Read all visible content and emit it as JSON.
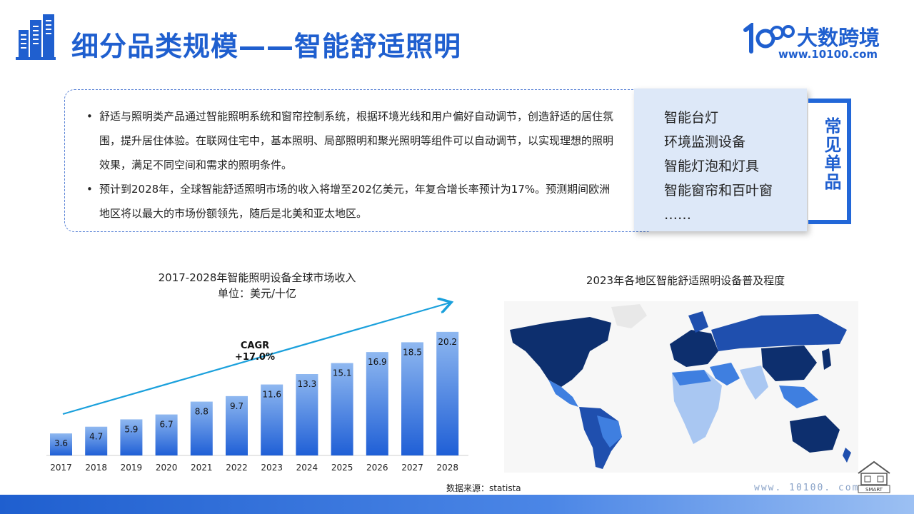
{
  "header": {
    "title": "细分品类规模——智能舒适照明",
    "brand_name": "大数跨境",
    "brand_url": "www.10100.com"
  },
  "description": {
    "bullets": [
      "舒适与照明类产品通过智能照明系统和窗帘控制系统，根据环境光线和用户偏好自动调节，创造舒适的居住氛围，提升居住体验。在联网住宅中，基本照明、局部照明和聚光照明等组件可以自动调节，以实现理想的照明效果，满足不同空间和需求的照明条件。",
      "预计到2028年，全球智能舒适照明市场的收入将增至202亿美元，年复合增长率预计为17%。预测期间欧洲地区将以最大的市场份额领先，随后是北美和亚太地区。"
    ]
  },
  "common_items": {
    "tag": "常见单品",
    "items": [
      "智能台灯",
      "环境监测设备",
      "智能灯泡和灯具",
      "智能窗帘和百叶窗",
      "……"
    ]
  },
  "chart_data": {
    "type": "bar",
    "title": "2017-2028年智能照明设备全球市场收入",
    "subtitle": "单位：美元/十亿",
    "categories": [
      "2017",
      "2018",
      "2019",
      "2020",
      "2021",
      "2022",
      "2023",
      "2024",
      "2025",
      "2026",
      "2027",
      "2028"
    ],
    "values": [
      3.6,
      4.7,
      5.9,
      6.7,
      8.8,
      9.7,
      11.6,
      13.3,
      15.1,
      16.9,
      18.5,
      20.2
    ],
    "data_labels": [
      "3.6",
      "4.7",
      "5.9",
      "6.7",
      "8.8",
      "9.7",
      "11.6",
      "13.3",
      "15.1",
      "16.9",
      "18.5",
      "20.2"
    ],
    "ylim": [
      0,
      21
    ],
    "annotation": {
      "label": "CAGR",
      "value": "+17.0%"
    },
    "bar_color_top": "#8fb8f0",
    "bar_color_bottom": "#1f5fd6",
    "arrow_color": "#1aa0dc"
  },
  "map": {
    "title": "2023年各地区智能舒适照明设备普及程度",
    "colors": {
      "high": "#0d2f6e",
      "mid_high": "#1f4fae",
      "mid": "#3f7fe0",
      "low": "#a9c7f2",
      "none": "#e8e8e8"
    }
  },
  "source": "数据来源：statista",
  "footer": {
    "url": "www. 10100. com",
    "badge": "SMART"
  }
}
